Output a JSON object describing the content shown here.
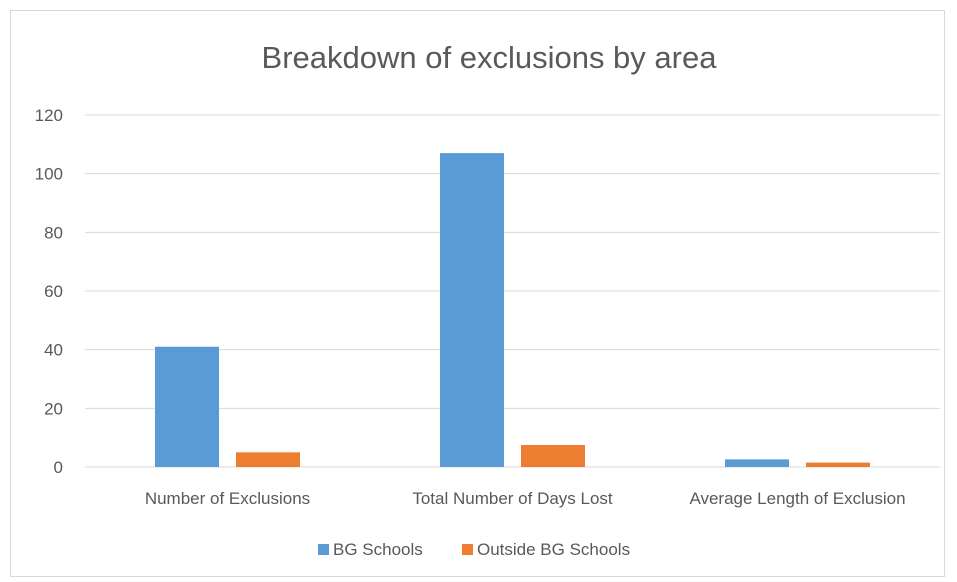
{
  "chart_data": {
    "type": "bar",
    "title": "Breakdown of exclusions by area",
    "categories": [
      "Number of Exclusions",
      "Total Number of Days Lost",
      "Average Length of Exclusion"
    ],
    "series": [
      {
        "name": "BG Schools",
        "values": [
          41,
          107,
          2.6
        ],
        "color": "#5b9bd5"
      },
      {
        "name": "Outside BG Schools",
        "values": [
          5,
          7.5,
          1.5
        ],
        "color": "#ed7d31"
      }
    ],
    "ylim": [
      0,
      120
    ],
    "yticks": [
      0,
      20,
      40,
      60,
      80,
      100,
      120
    ],
    "grid": true,
    "legend": "bottom"
  }
}
